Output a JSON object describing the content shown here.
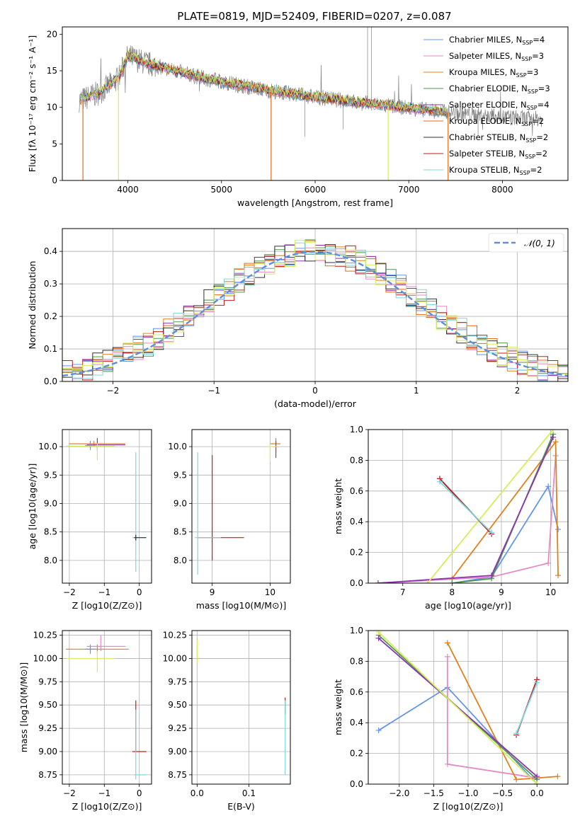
{
  "figure_title": "PLATE=0819, MJD=52409, FIBERID=0207, z=0.087",
  "colors": {
    "Chabrier MILES": "#6495ed",
    "Salpeter MILES": "#e78ac3",
    "Kroupa MILES": "#e08020",
    "Chabrier ELODIE": "#4d9a4d",
    "Salpeter ELODIE": "#8b35b0",
    "Kroupa ELODIE": "#e86a10",
    "Chabrier STELIB": "#303030",
    "Salpeter STELIB": "#c41a1a",
    "Kroupa STELIB": "#7fd5e0",
    "observed": "#808080",
    "extra_model": "#d4ee5a",
    "normal_curve": "#5b8ee0",
    "grid": "#b0b0b0"
  },
  "chart_data": [
    {
      "id": "spectrum",
      "type": "line",
      "title": "PLATE=0819, MJD=52409, FIBERID=0207, z=0.087",
      "xlabel": "wavelength [Angstrom, rest frame]",
      "ylabel": "Flux [fλ 10⁻¹⁷ erg cm⁻² s⁻¹ A⁻¹]",
      "xlim": [
        3300,
        8700
      ],
      "ylim": [
        0,
        21
      ],
      "xticks": [
        4000,
        5000,
        6000,
        7000,
        8000
      ],
      "yticks": [
        0,
        5,
        10,
        15,
        20
      ],
      "grid": false,
      "legend_position": "top-right",
      "legend": [
        "Chabrier MILES, N_SSP=4",
        "Salpeter MILES, N_SSP=3",
        "Kroupa MILES, N_SSP=3",
        "Chabrier ELODIE, N_SSP=3",
        "Salpeter ELODIE, N_SSP=4",
        "Kroupa ELODIE, N_SSP=2",
        "Chabrier STELIB, N_SSP=2",
        "Salpeter STELIB, N_SSP=2",
        "Kroupa STELIB, N_SSP=2"
      ],
      "continuum": {
        "x": [
          3500,
          3700,
          3900,
          4000,
          4200,
          4500,
          4800,
          5000,
          5500,
          6000,
          6500,
          7000,
          7500,
          8000,
          8400
        ],
        "y": [
          11.0,
          12.0,
          14.0,
          17.0,
          16.0,
          15.0,
          14.0,
          13.5,
          12.3,
          11.4,
          10.6,
          9.9,
          9.2,
          8.7,
          8.4
        ]
      }
    },
    {
      "id": "residuals",
      "type": "step",
      "xlabel": "(data-model)/error",
      "ylabel": "Normed distribution",
      "xlim": [
        -2.5,
        2.5
      ],
      "ylim": [
        0,
        0.47
      ],
      "xticks": [
        -2,
        -1,
        0,
        1,
        2
      ],
      "yticks": [
        0.0,
        0.1,
        0.2,
        0.3,
        0.4
      ],
      "grid": true,
      "legend_position": "top-right",
      "legend": [
        "𝒩(0, 1)"
      ],
      "bins": {
        "start": -2.5,
        "width": 0.1,
        "count": 50
      },
      "envelope": {
        "mean": 0.0,
        "sigma": 1.0
      }
    },
    {
      "id": "age_vs_Z",
      "type": "errorbar",
      "xlabel": "Z [log10(Z/Z⊙)]",
      "ylabel": "age  [log10(age/yr)]",
      "xlim": [
        -2.2,
        0.35
      ],
      "ylim": [
        7.6,
        10.3
      ],
      "xticks": [
        -2,
        -1,
        0
      ],
      "yticks": [
        8.0,
        8.5,
        9.0,
        9.5,
        10.0
      ],
      "grid": true,
      "points": [
        {
          "x": -1.3,
          "y": 10.05,
          "xerr": [
            0.7,
            0.9
          ],
          "yerr": [
            0.05,
            0.05
          ],
          "color": "Kroupa MILES"
        },
        {
          "x": -1.2,
          "y": 10.03,
          "xerr": [
            0.3,
            0.8
          ],
          "yerr": [
            0.1,
            0.12
          ],
          "color": "Salpeter ELODIE"
        },
        {
          "x": -1.4,
          "y": 10.02,
          "xerr": [
            0.15,
            0.15
          ],
          "yerr": [
            0.08,
            0.08
          ],
          "color": "Chabrier MILES"
        },
        {
          "x": -1.2,
          "y": 10.01,
          "xerr": [
            0.9,
            0.5
          ],
          "yerr": [
            0.25,
            0.05
          ],
          "color": "extra_model"
        },
        {
          "x": -0.1,
          "y": 8.4,
          "xerr": [
            0.1,
            0.3
          ],
          "yerr": [
            0.6,
            1.5
          ],
          "color": "Kroupa STELIB"
        },
        {
          "x": -0.1,
          "y": 8.4,
          "xerr": [
            0.05,
            0.3
          ],
          "yerr": [
            0.05,
            0.05
          ],
          "color": "Chabrier STELIB"
        }
      ]
    },
    {
      "id": "age_vs_mass",
      "type": "errorbar",
      "xlabel": "mass [log10(M/M⊙)]",
      "ylabel": "",
      "xlim": [
        8.65,
        10.35
      ],
      "ylim": [
        7.6,
        10.3
      ],
      "xticks": [
        9,
        10
      ],
      "yticks": [
        8.0,
        8.5,
        9.0,
        9.5,
        10.0
      ],
      "grid": true,
      "points": [
        {
          "x": 10.1,
          "y": 10.05,
          "xerr": [
            0.1,
            0.08
          ],
          "yerr": [
            0.15,
            0.1
          ],
          "color": "Kroupa MILES"
        },
        {
          "x": 10.1,
          "y": 10.0,
          "xerr": [
            0.05,
            0.05
          ],
          "yerr": [
            0.2,
            0.1
          ],
          "color": "Salpeter ELODIE"
        },
        {
          "x": 10.0,
          "y": 10.0,
          "xerr": [
            0.05,
            0.15
          ],
          "yerr": [
            0.25,
            0.05
          ],
          "color": "extra_model"
        },
        {
          "x": 9.0,
          "y": 8.4,
          "xerr": [
            0.25,
            0.55
          ],
          "yerr": [
            0.4,
            1.45
          ],
          "color": "Salpeter STELIB"
        },
        {
          "x": 8.75,
          "y": 8.4,
          "xerr": [
            0.05,
            0.4
          ],
          "yerr": [
            0.65,
            1.5
          ],
          "color": "Kroupa STELIB"
        }
      ]
    },
    {
      "id": "weight_vs_age",
      "type": "line",
      "xlabel": "age  [log10(age/yr)]",
      "ylabel": "mass weight",
      "xlim": [
        6.3,
        10.35
      ],
      "ylim": [
        0,
        1
      ],
      "xticks": [
        7,
        8,
        9,
        10
      ],
      "yticks": [
        0.0,
        0.2,
        0.4,
        0.6,
        0.8,
        1.0
      ],
      "grid": true,
      "series": [
        {
          "color": "Chabrier MILES",
          "x": [
            8.0,
            8.8,
            9.95,
            10.15
          ],
          "y": [
            0.0,
            0.04,
            0.63,
            0.35
          ]
        },
        {
          "color": "Salpeter MILES",
          "x": [
            6.5,
            8.8,
            9.95,
            10.1
          ],
          "y": [
            0.0,
            0.04,
            0.13,
            0.83
          ]
        },
        {
          "color": "Kroupa MILES",
          "x": [
            8.0,
            10.1,
            10.15
          ],
          "y": [
            0.03,
            0.92,
            0.05
          ]
        },
        {
          "color": "Chabrier ELODIE",
          "x": [
            8.0,
            8.8,
            10.05
          ],
          "y": [
            0.0,
            0.03,
            0.97
          ]
        },
        {
          "color": "Salpeter ELODIE",
          "x": [
            6.5,
            8.8,
            10.05
          ],
          "y": [
            0.0,
            0.05,
            0.95
          ]
        },
        {
          "color": "extra_model",
          "x": [
            7.5,
            10.05
          ],
          "y": [
            0.0,
            1.0
          ]
        },
        {
          "color": "Chabrier STELIB",
          "x": [
            7.75,
            8.8
          ],
          "y": [
            0.68,
            0.32
          ]
        },
        {
          "color": "Salpeter STELIB",
          "x": [
            7.75,
            8.8
          ],
          "y": [
            0.68,
            0.32
          ]
        },
        {
          "color": "Kroupa STELIB",
          "x": [
            7.75,
            8.8
          ],
          "y": [
            0.66,
            0.33
          ]
        }
      ]
    },
    {
      "id": "mass_vs_Z",
      "type": "errorbar",
      "xlabel": "Z [log10(Z/Z⊙)]",
      "ylabel": "mass [log10(M/M⊙)]",
      "xlim": [
        -2.2,
        0.35
      ],
      "ylim": [
        8.65,
        10.3
      ],
      "xticks": [
        -2,
        -1,
        0
      ],
      "yticks": [
        8.75,
        9.0,
        9.25,
        9.5,
        9.75,
        10.0,
        10.25
      ],
      "grid": true,
      "points": [
        {
          "x": -1.2,
          "y": 10.1,
          "xerr": [
            0.9,
            0.9
          ],
          "yerr": [
            0.05,
            0.05
          ],
          "color": "Kroupa MILES"
        },
        {
          "x": -1.1,
          "y": 10.13,
          "xerr": [
            0.4,
            0.7
          ],
          "yerr": [
            0.05,
            0.12
          ],
          "color": "Salpeter MILES"
        },
        {
          "x": -1.4,
          "y": 10.1,
          "xerr": [
            0.15,
            0.15
          ],
          "yerr": [
            0.05,
            0.05
          ],
          "color": "Chabrier MILES"
        },
        {
          "x": -1.2,
          "y": 10.0,
          "xerr": [
            0.9,
            0.5
          ],
          "yerr": [
            0.15,
            0.08
          ],
          "color": "extra_model"
        },
        {
          "x": -0.1,
          "y": 9.0,
          "xerr": [
            0.1,
            0.3
          ],
          "yerr": [
            0.0,
            0.0
          ],
          "color": "Salpeter STELIB"
        },
        {
          "x": -0.1,
          "y": 9.0,
          "xerr": [
            0.0,
            0.0
          ],
          "yerr": [
            0.0,
            0.55
          ],
          "color": "Salpeter STELIB"
        },
        {
          "x": -0.1,
          "y": 8.75,
          "xerr": [
            0.05,
            0.3
          ],
          "yerr": [
            0.05,
            0.7
          ],
          "color": "Kroupa STELIB"
        }
      ]
    },
    {
      "id": "mass_vs_EBV",
      "type": "errorbar",
      "xlabel": "E(B-V)",
      "ylabel": "",
      "xlim": [
        -0.01,
        0.18
      ],
      "ylim": [
        8.65,
        10.3
      ],
      "xticks": [
        0.0,
        0.1
      ],
      "yticks": [
        8.75,
        9.0,
        9.25,
        9.5,
        9.75,
        10.0,
        10.25
      ],
      "grid": true,
      "points": [
        {
          "x": 0.0,
          "y": 10.05,
          "xerr": [
            0.0,
            0.0
          ],
          "yerr": [
            0.1,
            0.15
          ],
          "color": "extra_model"
        },
        {
          "x": 0.17,
          "y": 9.5,
          "xerr": [
            0.0,
            0.0
          ],
          "yerr": [
            0.1,
            0.08
          ],
          "color": "Salpeter STELIB"
        },
        {
          "x": 0.17,
          "y": 9.0,
          "xerr": [
            0.0,
            0.0
          ],
          "yerr": [
            0.25,
            0.55
          ],
          "color": "Kroupa STELIB"
        }
      ]
    },
    {
      "id": "weight_vs_Z",
      "type": "line",
      "xlabel": "Z [log10(Z/Z⊙)]",
      "ylabel": "mass weight",
      "xlim": [
        -2.45,
        0.45
      ],
      "ylim": [
        0,
        1
      ],
      "xticks": [
        -2.0,
        -1.5,
        -1.0,
        -0.5,
        0.0
      ],
      "yticks": [
        0.0,
        0.2,
        0.4,
        0.6,
        0.8,
        1.0
      ],
      "grid": true,
      "series": [
        {
          "color": "Chabrier MILES",
          "x": [
            -2.3,
            -1.3,
            0.0
          ],
          "y": [
            0.35,
            0.63,
            0.0
          ]
        },
        {
          "color": "Salpeter MILES",
          "x": [
            -1.3,
            -1.3,
            0.0,
            0.0
          ],
          "y": [
            0.83,
            0.13,
            0.04,
            0.0
          ]
        },
        {
          "color": "Kroupa MILES",
          "x": [
            -1.3,
            -0.3,
            0.3
          ],
          "y": [
            0.92,
            0.03,
            0.05
          ]
        },
        {
          "color": "Chabrier ELODIE",
          "x": [
            -2.3,
            0.0
          ],
          "y": [
            0.97,
            0.03
          ]
        },
        {
          "color": "Salpeter ELODIE",
          "x": [
            -2.3,
            0.0
          ],
          "y": [
            0.95,
            0.05
          ]
        },
        {
          "color": "extra_model",
          "x": [
            -2.3,
            0.0
          ],
          "y": [
            0.99,
            0.0
          ]
        },
        {
          "color": "Chabrier STELIB",
          "x": [
            -0.3,
            0.0
          ],
          "y": [
            0.32,
            0.68
          ]
        },
        {
          "color": "Salpeter STELIB",
          "x": [
            -0.3,
            0.0
          ],
          "y": [
            0.32,
            0.68
          ]
        },
        {
          "color": "Kroupa STELIB",
          "x": [
            -0.3,
            0.0
          ],
          "y": [
            0.33,
            0.66
          ]
        }
      ]
    }
  ]
}
